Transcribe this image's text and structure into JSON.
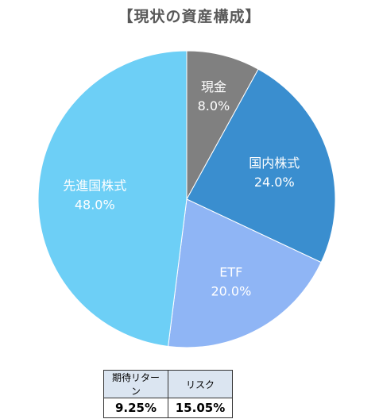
{
  "chart_data": {
    "type": "pie",
    "title": "【現状の資産構成】",
    "slices": [
      {
        "label": "現金",
        "value": 8.0,
        "value_label": "8.0%",
        "color": "#808080"
      },
      {
        "label": "国内株式",
        "value": 24.0,
        "value_label": "24.0%",
        "color": "#3a8ecf"
      },
      {
        "label": "ETF",
        "value": 20.0,
        "value_label": "20.0%",
        "color": "#8fb5f5"
      },
      {
        "label": "先進国株式",
        "value": 48.0,
        "value_label": "48.0%",
        "color": "#6dcff6"
      }
    ],
    "start": "12 o'clock",
    "direction": "clockwise",
    "legend": "none"
  },
  "table": {
    "headers": [
      "期待リターン",
      "リスク"
    ],
    "values": [
      "9.25%",
      "15.05%"
    ]
  }
}
